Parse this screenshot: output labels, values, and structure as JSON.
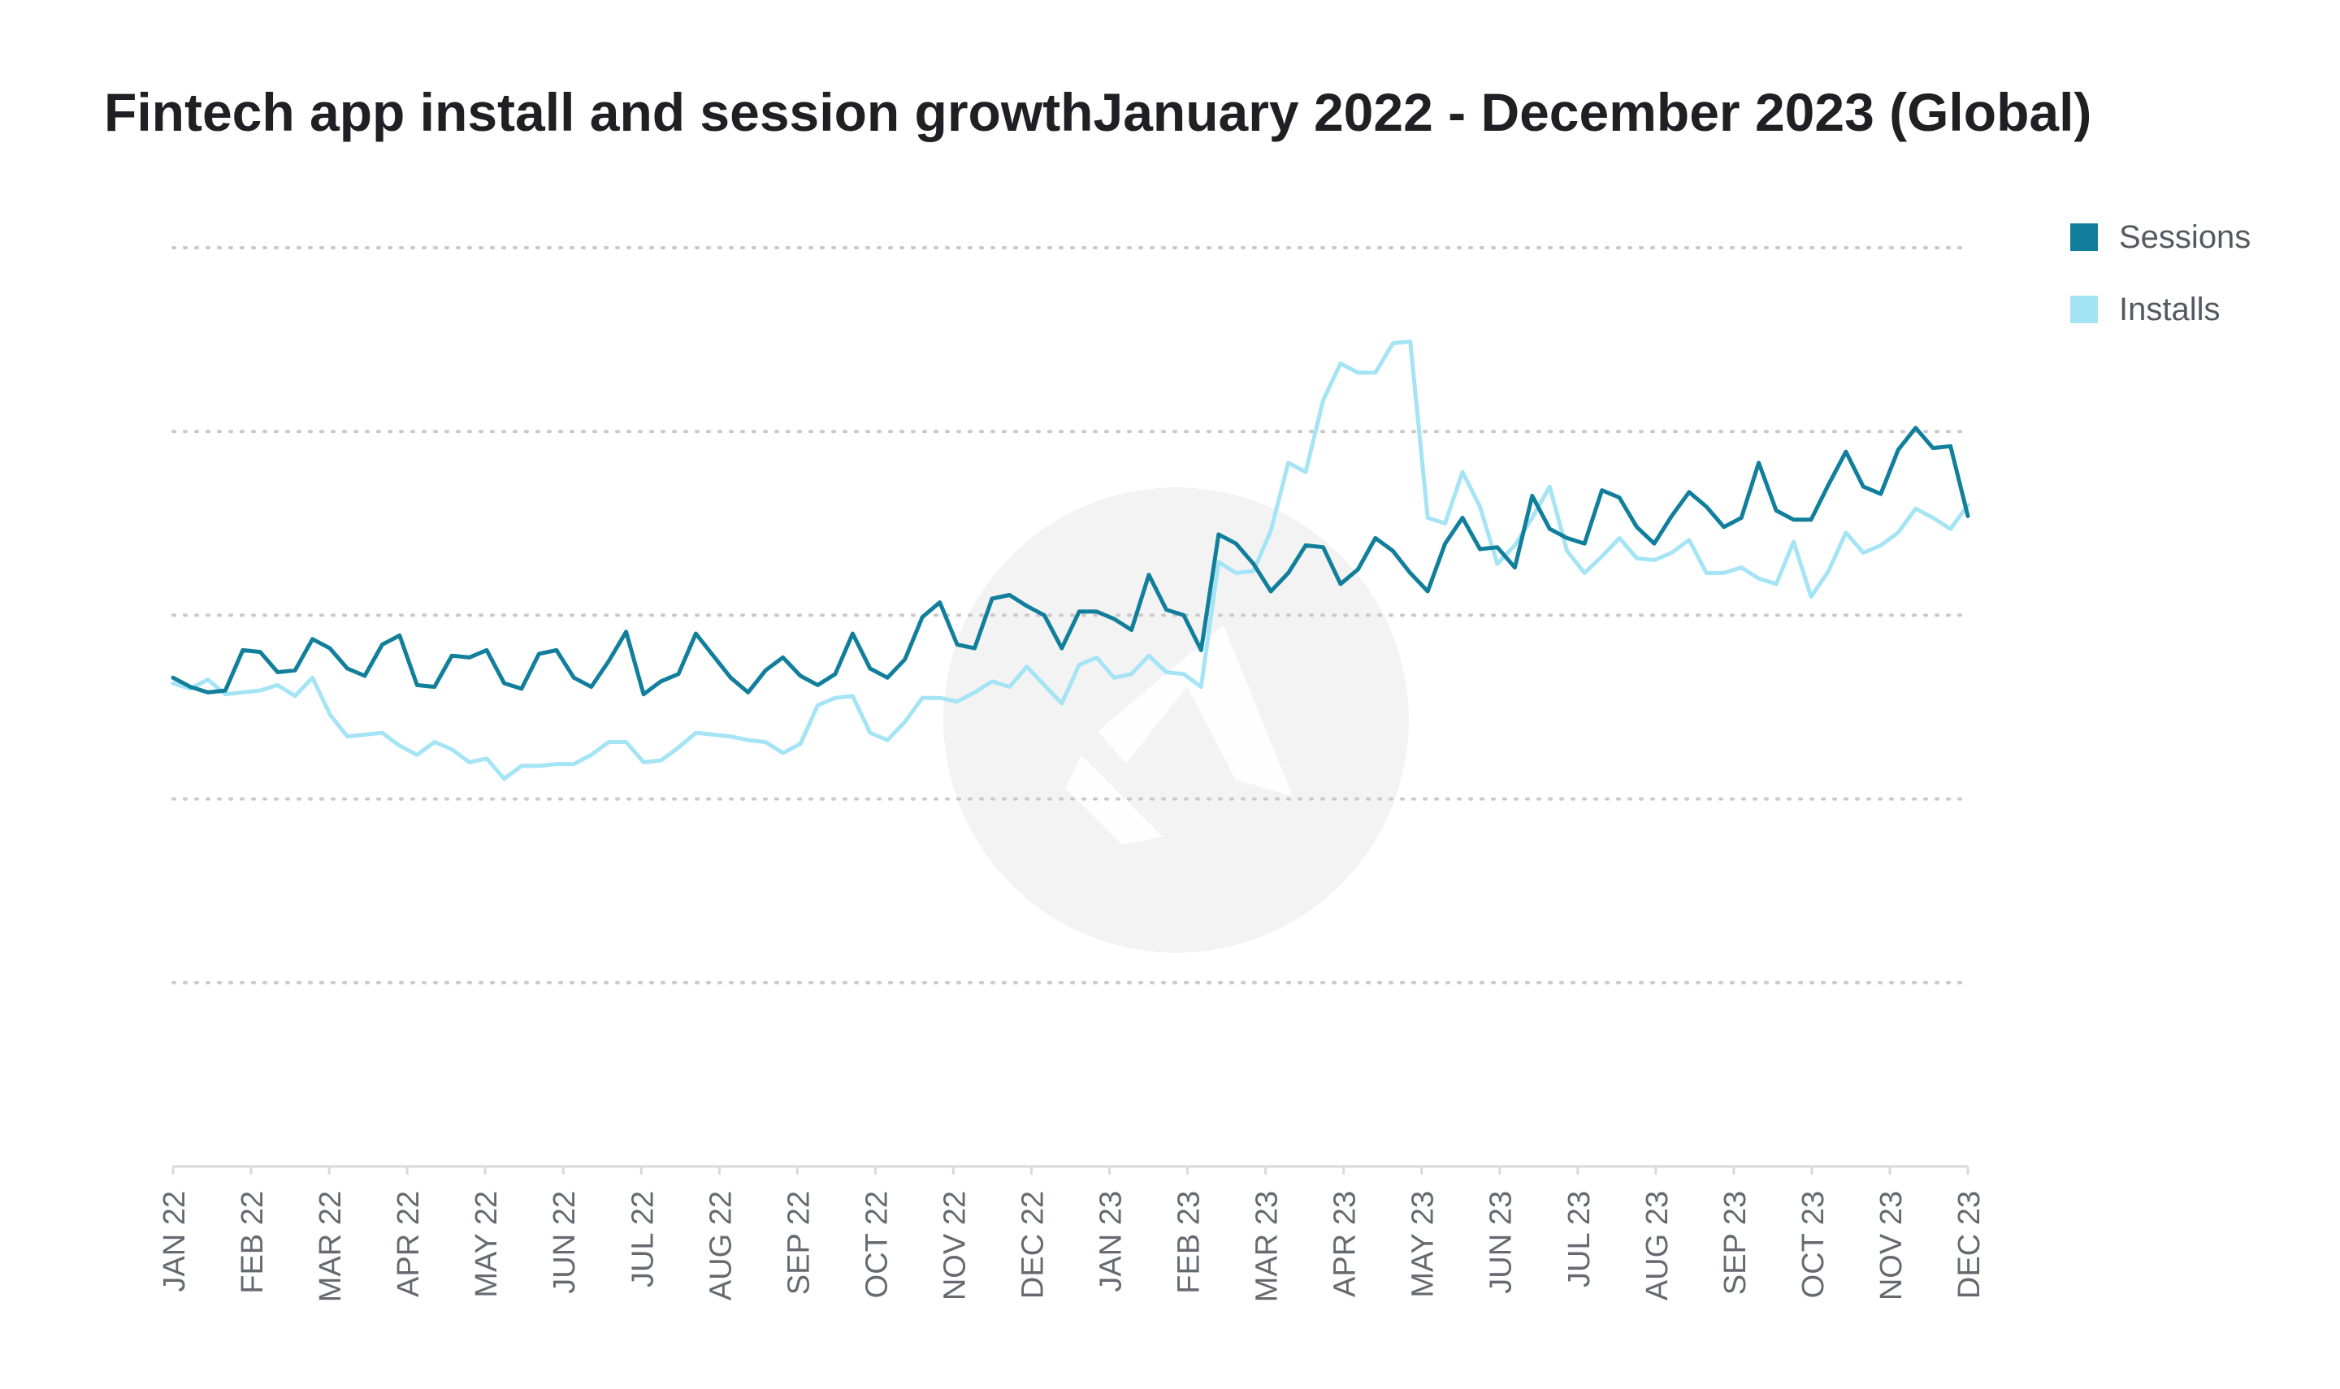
{
  "chart_data": {
    "type": "line",
    "title": "Fintech app install and session growthJanuary 2022 - December 2023 (Global)",
    "xlabel": "",
    "ylabel": "",
    "ylim": [
      0,
      5
    ],
    "grid": true,
    "legend_position": "top-right",
    "x_tick_labels": [
      "JAN 22",
      "FEB 22",
      "MAR 22",
      "APR 22",
      "MAY 22",
      "JUN 22",
      "JUL 22",
      "AUG 22",
      "SEP 22",
      "OCT 22",
      "NOV 22",
      "DEC 22",
      "JAN 23",
      "FEB 23",
      "MAR 23",
      "APR 23",
      "MAY 23",
      "JUN 23",
      "JUL 23",
      "AUG 23",
      "SEP 23",
      "OCT 23",
      "NOV 23",
      "DEC 23"
    ],
    "series": [
      {
        "name": "Sessions",
        "color": "#117f9b",
        "values": [
          2.66,
          2.61,
          2.58,
          2.59,
          2.81,
          2.8,
          2.69,
          2.7,
          2.87,
          2.82,
          2.71,
          2.67,
          2.84,
          2.89,
          2.62,
          2.61,
          2.78,
          2.77,
          2.81,
          2.63,
          2.6,
          2.79,
          2.81,
          2.66,
          2.61,
          2.75,
          2.91,
          2.57,
          2.64,
          2.68,
          2.9,
          2.78,
          2.66,
          2.58,
          2.7,
          2.77,
          2.67,
          2.62,
          2.68,
          2.9,
          2.71,
          2.66,
          2.76,
          2.99,
          3.07,
          2.84,
          2.82,
          3.09,
          3.11,
          3.05,
          3.0,
          2.82,
          3.02,
          3.02,
          2.98,
          2.92,
          3.22,
          3.03,
          3.0,
          2.81,
          3.44,
          3.39,
          3.28,
          3.13,
          3.23,
          3.38,
          3.37,
          3.17,
          3.25,
          3.42,
          3.35,
          3.23,
          3.13,
          3.39,
          3.53,
          3.36,
          3.37,
          3.26,
          3.65,
          3.47,
          3.42,
          3.39,
          3.68,
          3.64,
          3.48,
          3.39,
          3.54,
          3.67,
          3.59,
          3.48,
          3.53,
          3.83,
          3.57,
          3.52,
          3.52,
          3.71,
          3.89,
          3.7,
          3.66,
          3.9,
          4.02,
          3.91,
          3.92,
          3.54
        ]
      },
      {
        "name": "Installs",
        "color": "#a4e4f5",
        "values": [
          2.63,
          2.6,
          2.65,
          2.57,
          2.58,
          2.59,
          2.62,
          2.56,
          2.66,
          2.46,
          2.34,
          2.35,
          2.36,
          2.29,
          2.24,
          2.31,
          2.27,
          2.2,
          2.22,
          2.11,
          2.18,
          2.18,
          2.19,
          2.19,
          2.24,
          2.31,
          2.31,
          2.2,
          2.21,
          2.28,
          2.36,
          2.35,
          2.34,
          2.32,
          2.31,
          2.25,
          2.3,
          2.51,
          2.55,
          2.56,
          2.36,
          2.32,
          2.42,
          2.55,
          2.55,
          2.53,
          2.58,
          2.64,
          2.61,
          2.72,
          2.62,
          2.52,
          2.73,
          2.77,
          2.66,
          2.68,
          2.78,
          2.69,
          2.68,
          2.61,
          3.29,
          3.23,
          3.24,
          3.46,
          3.83,
          3.78,
          4.17,
          4.37,
          4.32,
          4.32,
          4.48,
          4.49,
          3.53,
          3.5,
          3.78,
          3.59,
          3.28,
          3.38,
          3.53,
          3.7,
          3.35,
          3.23,
          3.32,
          3.42,
          3.31,
          3.3,
          3.34,
          3.41,
          3.23,
          3.23,
          3.26,
          3.2,
          3.17,
          3.4,
          3.1,
          3.24,
          3.45,
          3.34,
          3.38,
          3.45,
          3.58,
          3.53,
          3.47,
          3.6
        ]
      }
    ]
  }
}
